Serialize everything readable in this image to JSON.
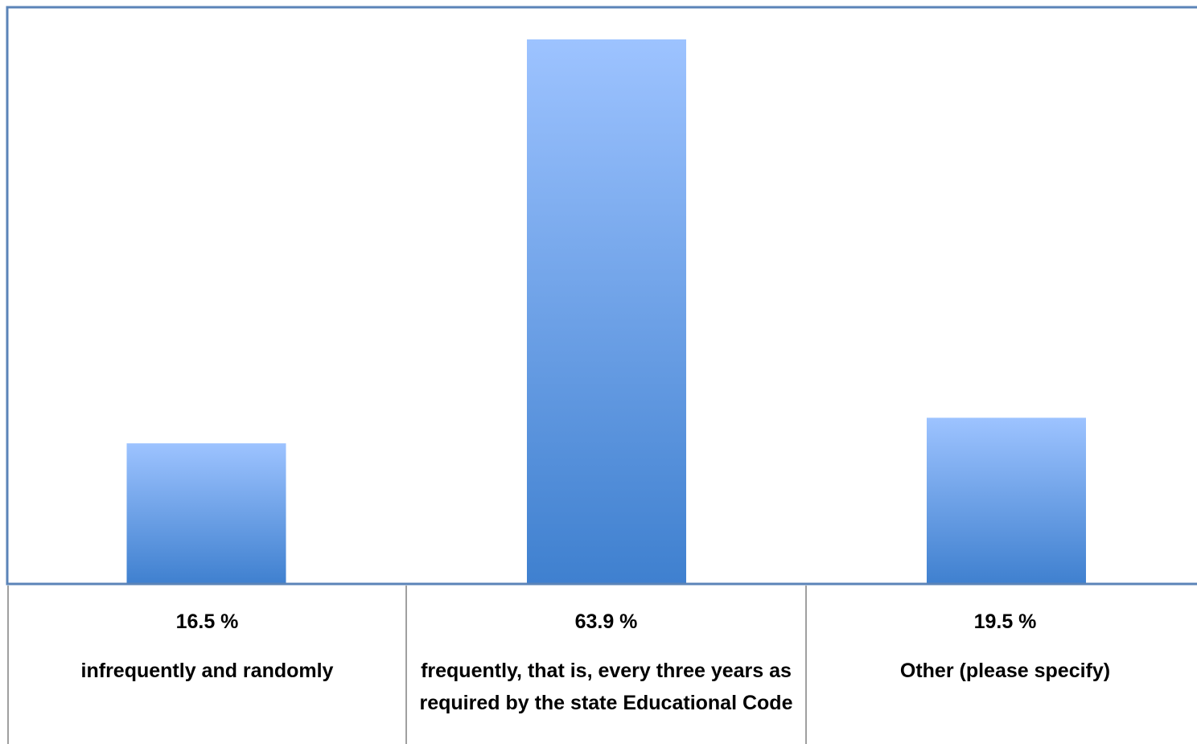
{
  "chart_data": {
    "type": "bar",
    "categories": [
      "infrequently and randomly",
      "frequently, that is, every three years as required by the state Educational Code",
      "Other (please specify)"
    ],
    "values": [
      16.5,
      63.9,
      19.5
    ],
    "value_labels": [
      "16.5 %",
      "63.9 %",
      "19.5 %"
    ],
    "title": "",
    "xlabel": "",
    "ylabel": "",
    "ylim": [
      0,
      63.9
    ],
    "grid": false,
    "legend": "none",
    "bar_color_top": "#9dc3ff",
    "bar_color_bottom": "#3f80cf",
    "frame_color": "#5b84b8",
    "table_line_color": "#808080"
  }
}
